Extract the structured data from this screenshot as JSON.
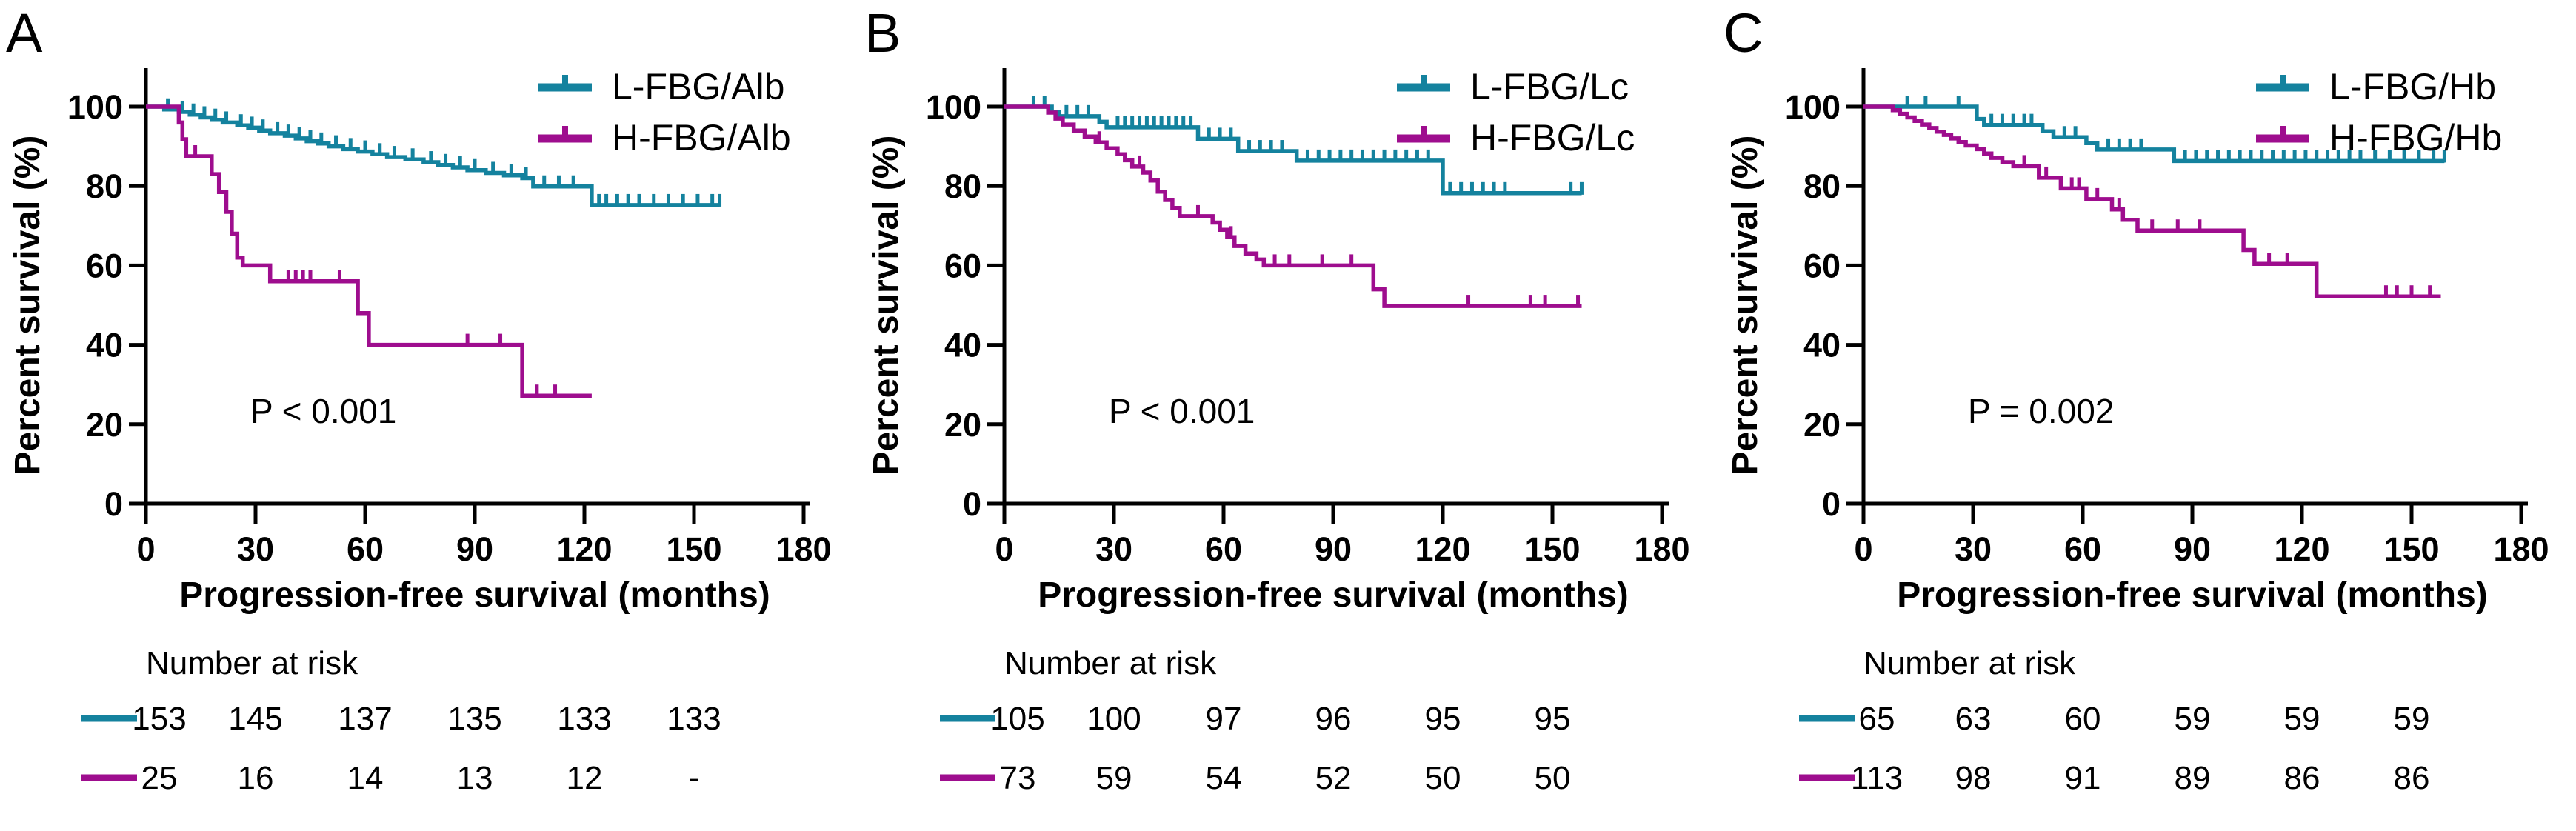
{
  "colors": {
    "low": "#14829E",
    "high": "#9E0D8E",
    "axis": "#000000",
    "background": "#FFFFFF"
  },
  "chart_data": [
    {
      "type": "line",
      "subtype": "kaplan-meier-step",
      "panel_label": "A",
      "xlabel": "Progression-free survival (months)",
      "ylabel": "Percent survival (%)",
      "p_label": "P < 0.001",
      "xlim": [
        0,
        180
      ],
      "ylim": [
        0,
        100
      ],
      "x_ticks": [
        0,
        30,
        60,
        90,
        120,
        150,
        180
      ],
      "y_ticks": [
        0,
        20,
        40,
        60,
        80,
        100
      ],
      "grid": false,
      "legend_position": "top-right",
      "series": [
        {
          "name": "L-FBG/Alb",
          "color_key": "low",
          "steps": [
            [
              0,
              100
            ],
            [
              5,
              99.3
            ],
            [
              9,
              98.7
            ],
            [
              12,
              98
            ],
            [
              15,
              97.3
            ],
            [
              18,
              96.7
            ],
            [
              21,
              96
            ],
            [
              25,
              95.3
            ],
            [
              28,
              94.7
            ],
            [
              31,
              94
            ],
            [
              34,
              93.3
            ],
            [
              38,
              92.7
            ],
            [
              41,
              92
            ],
            [
              44,
              91.3
            ],
            [
              47,
              90.7
            ],
            [
              50,
              90
            ],
            [
              54,
              89.3
            ],
            [
              58,
              88.7
            ],
            [
              62,
              88
            ],
            [
              66,
              87.3
            ],
            [
              71,
              86.7
            ],
            [
              76,
              86
            ],
            [
              80,
              85.3
            ],
            [
              84,
              84.7
            ],
            [
              88,
              84
            ],
            [
              93,
              83.3
            ],
            [
              98,
              82.7
            ],
            [
              103,
              82
            ],
            [
              106,
              79.9
            ],
            [
              122,
              75.2
            ]
          ],
          "end": 157,
          "censors": [
            6,
            10,
            13,
            16,
            19,
            22,
            26,
            29,
            32,
            36,
            39,
            42,
            45,
            48,
            52,
            56,
            60,
            64,
            68,
            73,
            78,
            82,
            86,
            90,
            95,
            100,
            104,
            109,
            113,
            117,
            124,
            126,
            129,
            132,
            135,
            139,
            143,
            147,
            151,
            155,
            157
          ]
        },
        {
          "name": "H-FBG/Alb",
          "color_key": "high",
          "steps": [
            [
              0,
              100
            ],
            [
              9,
              96
            ],
            [
              10,
              91.8
            ],
            [
              11,
              87.5
            ],
            [
              18,
              83
            ],
            [
              20,
              78.5
            ],
            [
              22,
              73.5
            ],
            [
              23.5,
              68
            ],
            [
              25,
              62
            ],
            [
              26.5,
              60
            ],
            [
              34,
              56
            ],
            [
              58,
              48
            ],
            [
              61,
              40
            ],
            [
              103,
              27.2
            ]
          ],
          "end": 122,
          "censors": [
            13.5,
            39,
            41,
            43,
            45,
            53,
            88,
            97,
            107,
            112
          ]
        }
      ],
      "risk_table": {
        "title": "Number at risk",
        "times": [
          0,
          30,
          60,
          90,
          120,
          150
        ],
        "rows": [
          {
            "name": "L-FBG/Alb",
            "color_key": "low",
            "values": [
              "153",
              "145",
              "137",
              "135",
              "133",
              "133"
            ]
          },
          {
            "name": "H-FBG/Alb",
            "color_key": "high",
            "values": [
              "25",
              "16",
              "14",
              "13",
              "12",
              "-"
            ]
          }
        ]
      }
    },
    {
      "type": "line",
      "subtype": "kaplan-meier-step",
      "panel_label": "B",
      "xlabel": "Progression-free survival (months)",
      "ylabel": "Percent survival (%)",
      "p_label": "P < 0.001",
      "xlim": [
        0,
        180
      ],
      "ylim": [
        0,
        100
      ],
      "x_ticks": [
        0,
        30,
        60,
        90,
        120,
        150,
        180
      ],
      "y_ticks": [
        0,
        20,
        40,
        60,
        80,
        100
      ],
      "grid": false,
      "legend_position": "top-right",
      "series": [
        {
          "name": "L-FBG/Lc",
          "color_key": "low",
          "steps": [
            [
              0,
              100
            ],
            [
              13,
              98.6
            ],
            [
              15,
              97.6
            ],
            [
              26,
              96.2
            ],
            [
              28,
              94.8
            ],
            [
              53,
              91.9
            ],
            [
              64,
              88.8
            ],
            [
              80,
              86.4
            ],
            [
              120,
              78.2
            ]
          ],
          "end": 158,
          "censors": [
            8,
            11,
            17,
            20,
            23,
            31,
            33,
            35,
            37,
            39,
            41,
            43,
            45,
            47,
            49,
            51,
            56,
            59,
            62,
            67,
            70,
            73,
            76,
            83,
            86,
            89,
            92,
            95,
            98,
            101,
            104,
            107,
            110,
            113,
            116,
            122,
            125,
            128,
            131,
            134,
            137,
            155,
            158
          ]
        },
        {
          "name": "H-FBG/Lc",
          "color_key": "high",
          "steps": [
            [
              0,
              100
            ],
            [
              12,
              98.5
            ],
            [
              14,
              97
            ],
            [
              16,
              95.5
            ],
            [
              19,
              94
            ],
            [
              22,
              92.5
            ],
            [
              25,
              91
            ],
            [
              28,
              89.5
            ],
            [
              31,
              88
            ],
            [
              33,
              86.5
            ],
            [
              35,
              84.9
            ],
            [
              38,
              83.4
            ],
            [
              40,
              81.4
            ],
            [
              42,
              78.6
            ],
            [
              44,
              76.5
            ],
            [
              46,
              74.5
            ],
            [
              48,
              72.4
            ],
            [
              57,
              70.8
            ],
            [
              59,
              69
            ],
            [
              61,
              67.1
            ],
            [
              63,
              64.9
            ],
            [
              66,
              63
            ],
            [
              69,
              61.5
            ],
            [
              71,
              60
            ],
            [
              101,
              54
            ],
            [
              104,
              49.8
            ]
          ],
          "end": 158,
          "censors": [
            26,
            37,
            53,
            62,
            74,
            78,
            87,
            95,
            127,
            144,
            148,
            157
          ]
        }
      ],
      "risk_table": {
        "title": "Number at risk",
        "times": [
          0,
          30,
          60,
          90,
          120,
          150
        ],
        "rows": [
          {
            "name": "L-FBG/Lc",
            "color_key": "low",
            "values": [
              "105",
              "100",
              "97",
              "96",
              "95",
              "95"
            ]
          },
          {
            "name": "H-FBG/Lc",
            "color_key": "high",
            "values": [
              "73",
              "59",
              "54",
              "52",
              "50",
              "50"
            ]
          }
        ]
      }
    },
    {
      "type": "line",
      "subtype": "kaplan-meier-step",
      "panel_label": "C",
      "xlabel": "Progression-free survival (months)",
      "ylabel": "Percent survival (%)",
      "p_label": "P = 0.002",
      "xlim": [
        0,
        180
      ],
      "ylim": [
        0,
        100
      ],
      "x_ticks": [
        0,
        30,
        60,
        90,
        120,
        150,
        180
      ],
      "y_ticks": [
        0,
        20,
        40,
        60,
        80,
        100
      ],
      "grid": false,
      "legend_position": "top-right",
      "series": [
        {
          "name": "L-FBG/Hb",
          "color_key": "low",
          "steps": [
            [
              0,
              100
            ],
            [
              31,
              96.9
            ],
            [
              33,
              95.4
            ],
            [
              49,
              93.8
            ],
            [
              52,
              92.3
            ],
            [
              61,
              90.8
            ],
            [
              64,
              89.2
            ],
            [
              85,
              86.3
            ]
          ],
          "end": 159,
          "censors": [
            12,
            17,
            26,
            35,
            38,
            41,
            44,
            46,
            55,
            58,
            67,
            70,
            73,
            76,
            88,
            91,
            94,
            97,
            100,
            103,
            106,
            109,
            112,
            115,
            118,
            121,
            124,
            127,
            130,
            133,
            136,
            140,
            144,
            148,
            152,
            156,
            159
          ]
        },
        {
          "name": "H-FBG/Hb",
          "color_key": "high",
          "steps": [
            [
              0,
              100
            ],
            [
              8,
              99.1
            ],
            [
              10,
              98.2
            ],
            [
              12,
              97.3
            ],
            [
              14,
              96.4
            ],
            [
              16,
              95.5
            ],
            [
              18,
              94.6
            ],
            [
              20,
              93.7
            ],
            [
              22,
              92.9
            ],
            [
              24,
              92
            ],
            [
              26,
              91.1
            ],
            [
              28,
              90.2
            ],
            [
              31,
              89.3
            ],
            [
              33,
              88.2
            ],
            [
              35,
              87.1
            ],
            [
              38,
              86
            ],
            [
              41,
              85
            ],
            [
              48,
              82.1
            ],
            [
              54,
              79.4
            ],
            [
              61,
              76.7
            ],
            [
              68,
              74.1
            ],
            [
              71,
              71.5
            ],
            [
              75,
              68.8
            ],
            [
              104,
              63.9
            ],
            [
              107,
              60.4
            ],
            [
              124,
              52.2
            ]
          ],
          "end": 158,
          "censors": [
            44,
            50,
            57,
            59,
            64,
            70,
            79,
            86,
            92,
            111,
            116,
            143,
            146,
            150,
            155
          ]
        }
      ],
      "risk_table": {
        "title": "Number at risk",
        "times": [
          0,
          30,
          60,
          90,
          120,
          150
        ],
        "rows": [
          {
            "name": "L-FBG/Hb",
            "color_key": "low",
            "values": [
              "65",
              "63",
              "60",
              "59",
              "59",
              "59"
            ]
          },
          {
            "name": "H-FBG/Hb",
            "color_key": "high",
            "values": [
              "113",
              "98",
              "91",
              "89",
              "86",
              "86"
            ]
          }
        ]
      }
    }
  ]
}
